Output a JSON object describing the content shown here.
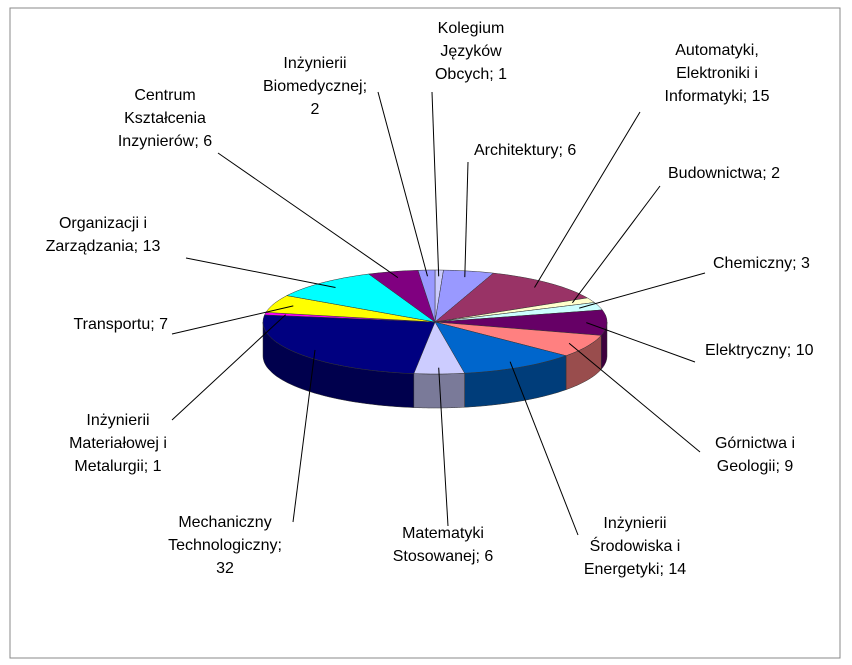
{
  "chart_data": {
    "type": "pie3d",
    "labels": [
      [
        "Kolegium",
        "Języków",
        "Obcych; 1"
      ],
      [
        "Architektury; 6"
      ],
      [
        "Automatyki,",
        "Elektroniki i",
        "Informatyki; 15"
      ],
      [
        "Budownictwa; 2"
      ],
      [
        "Chemiczny; 3"
      ],
      [
        "Elektryczny; 10"
      ],
      [
        "Górnictwa i",
        "Geologii; 9"
      ],
      [
        "Inżynierii",
        "Środowiska i",
        "Energetyki; 14"
      ],
      [
        "Matematyki",
        "Stosowanej; 6"
      ],
      [
        "Mechaniczny",
        "Technologiczny;",
        "32"
      ],
      [
        "Inżynierii",
        "Materiałowej i",
        "Metalurgii; 1"
      ],
      [
        "Transportu; 7"
      ],
      [
        "Organizacji i",
        "Zarządzania; 13"
      ],
      [
        "Centrum",
        "Kształcenia",
        "Inzynierów; 6"
      ],
      [
        "Inżynierii",
        "Biomedycznej;",
        "2"
      ]
    ],
    "values": [
      1,
      6,
      15,
      2,
      3,
      10,
      9,
      14,
      6,
      32,
      1,
      7,
      13,
      6,
      2
    ],
    "colors": [
      "#ccccff",
      "#9999ff",
      "#993366",
      "#ffffcc",
      "#ccffff",
      "#660066",
      "#ff8080",
      "#0066cc",
      "#ccccff",
      "#000080",
      "#ff00ff",
      "#ffff00",
      "#00ffff",
      "#800080",
      "#9999ff"
    ]
  }
}
